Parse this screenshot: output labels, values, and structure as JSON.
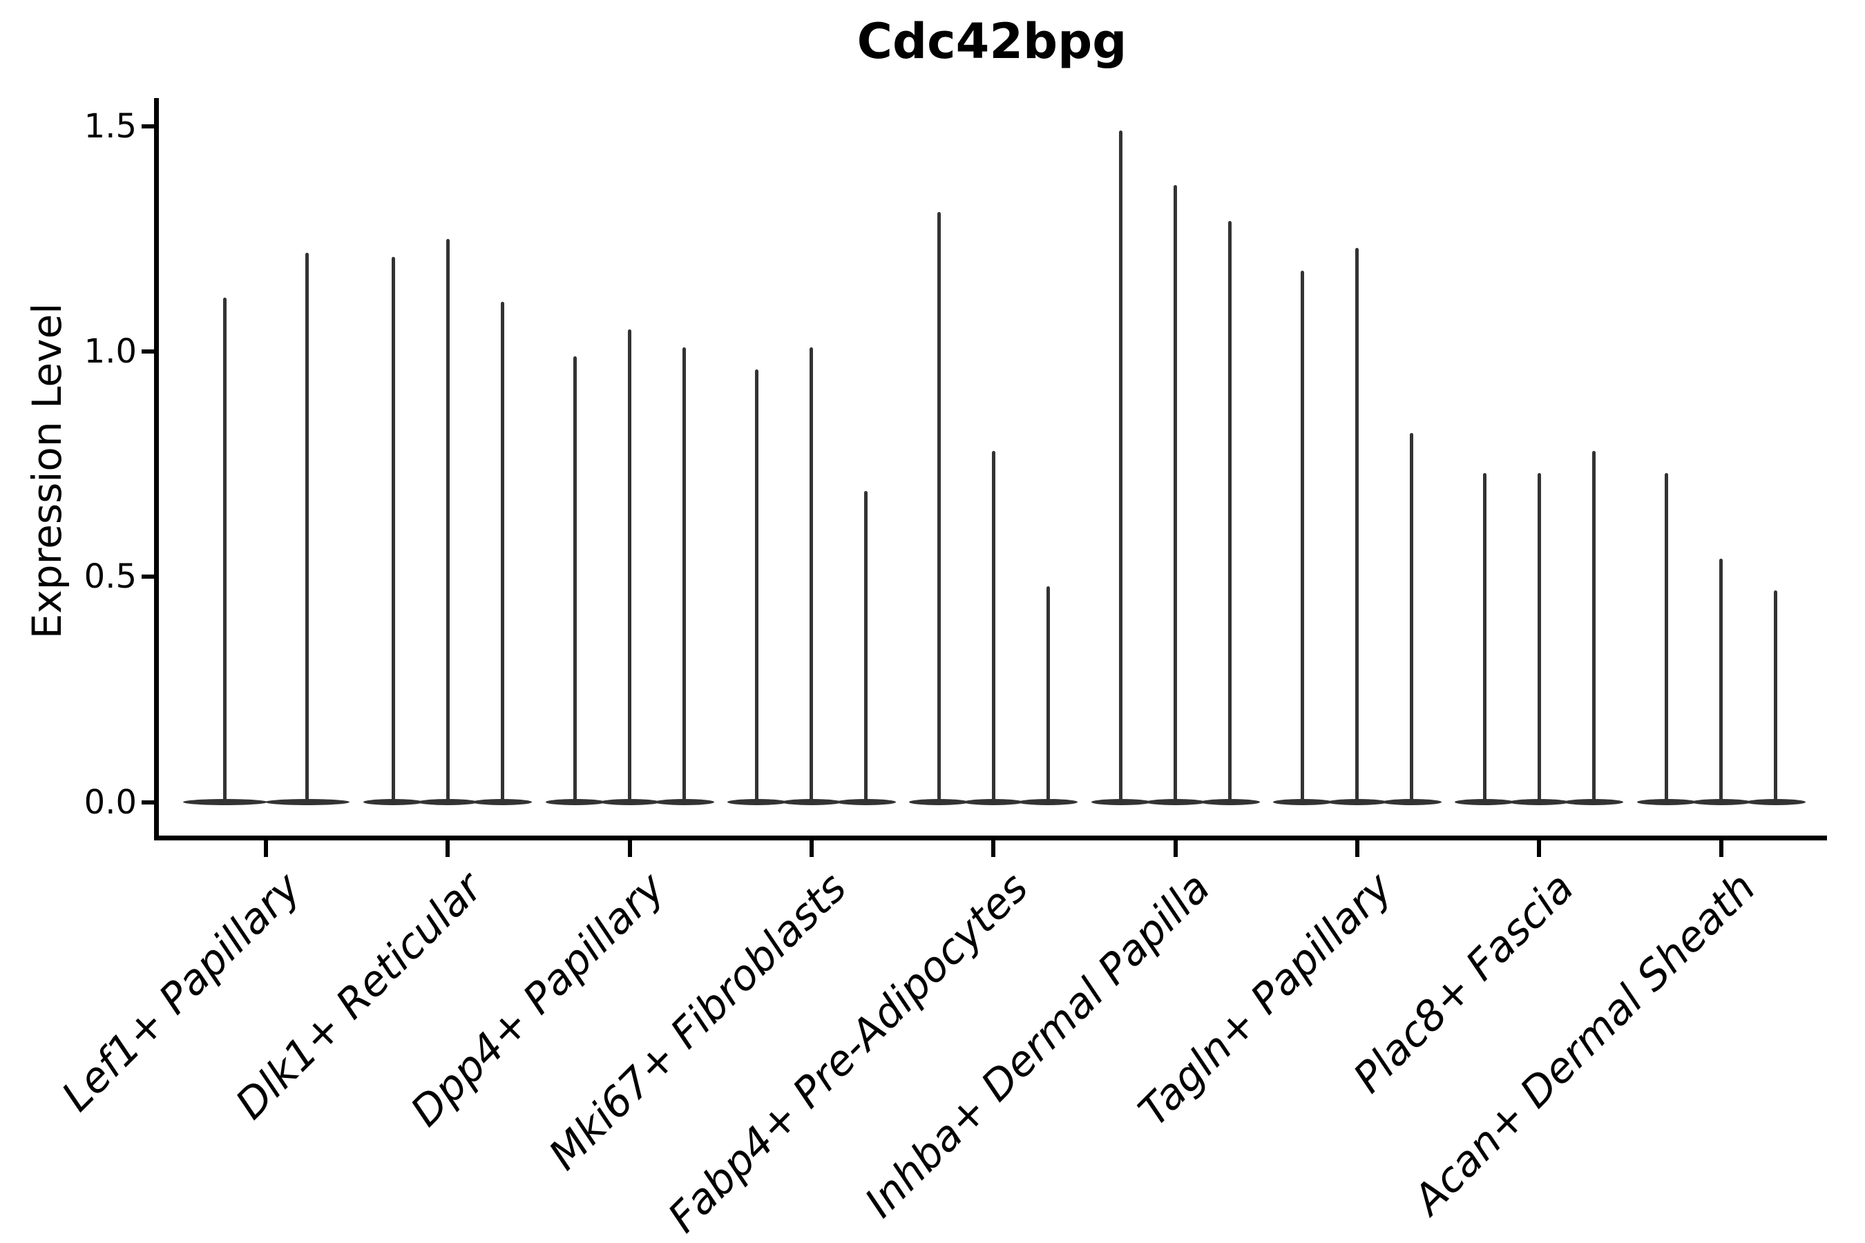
{
  "chart_data": {
    "type": "violin",
    "title": "Cdc42bpg",
    "ylabel": "Expression Level",
    "xlabel": "",
    "ylim": [
      0,
      1.56
    ],
    "grid": false,
    "legend": "none",
    "yticks": [
      {
        "value": 0.0,
        "label": "0.0"
      },
      {
        "value": 0.5,
        "label": "0.5"
      },
      {
        "value": 1.0,
        "label": "1.0"
      },
      {
        "value": 1.5,
        "label": "1.5"
      }
    ],
    "categories": [
      "Lef1+ Papillary",
      "Dlk1+ Reticular",
      "Dpp4+ Papillary",
      "Mki67+ Fibroblasts",
      "Fabp4+ Pre-Adipocytes",
      "Inhba+ Dermal Papilla",
      "Tagln+ Papillary",
      "Plac8+ Fascia",
      "Acan+ Dermal Sheath"
    ],
    "groups": [
      {
        "label": "Lef1+ Papillary",
        "violin_maxima": [
          1.12,
          1.22
        ]
      },
      {
        "label": "Dlk1+ Reticular",
        "violin_maxima": [
          1.21,
          1.25,
          1.11
        ]
      },
      {
        "label": "Dpp4+ Papillary",
        "violin_maxima": [
          0.99,
          1.05,
          1.01
        ]
      },
      {
        "label": "Mki67+ Fibroblasts",
        "violin_maxima": [
          0.96,
          1.01,
          0.69
        ]
      },
      {
        "label": "Fabp4+ Pre-Adipocytes",
        "violin_maxima": [
          1.31,
          0.78,
          0.48
        ]
      },
      {
        "label": "Inhba+ Dermal Papilla",
        "violin_maxima": [
          1.49,
          1.37,
          1.29
        ]
      },
      {
        "label": "Tagln+ Papillary",
        "violin_maxima": [
          1.18,
          1.23,
          0.82
        ]
      },
      {
        "label": "Plac8+ Fascia",
        "violin_maxima": [
          0.73,
          0.73,
          0.78
        ]
      },
      {
        "label": "Acan+ Dermal Sheath",
        "violin_maxima": [
          0.73,
          0.54,
          0.47
        ]
      }
    ],
    "violin_shape_note": "each violin: density concentrated at 0 (flat wide base) with thin spike up to its maximum",
    "colors": {
      "violin_stroke": "#333333",
      "axis": "#000000",
      "background": "#ffffff"
    }
  }
}
